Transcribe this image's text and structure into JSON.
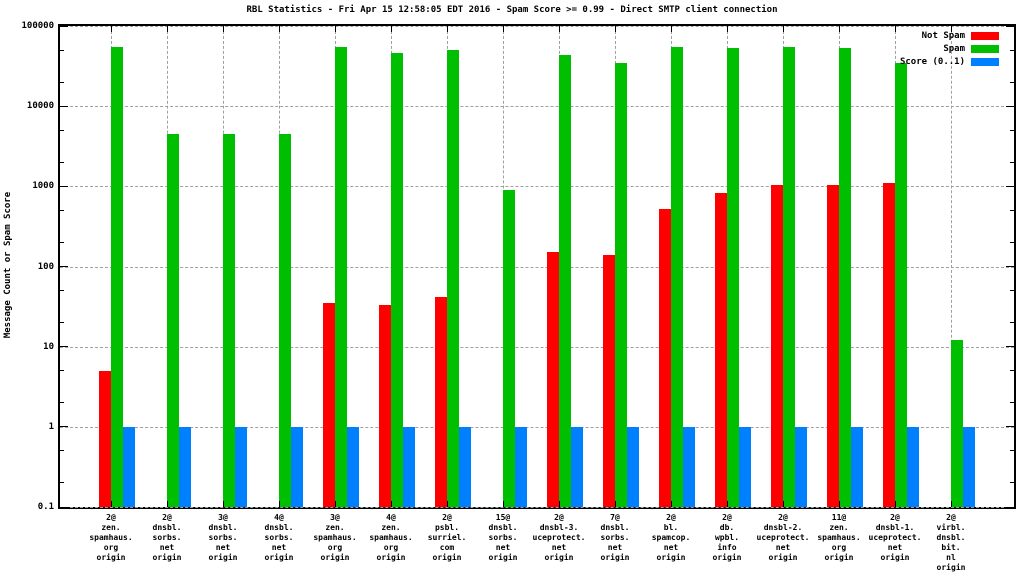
{
  "title": "RBL Statistics - Fri Apr 15 12:58:05 EDT 2016 - Spam Score >= 0.99 - Direct SMTP client connection",
  "colors": {
    "not_spam": "#ff0000",
    "spam": "#00bf00",
    "score": "#0080ff",
    "grid": "#a0a0a0",
    "border": "#000000",
    "background": "#ffffff"
  },
  "chart_data": {
    "type": "bar",
    "title": "RBL Statistics - Fri Apr 15 12:58:05 EDT 2016 - Spam Score >= 0.99 - Direct SMTP client connection",
    "ylabel": "Message Count or Spam Score",
    "xlabel": "",
    "yscale": "log",
    "ylim": [
      0.1,
      100000
    ],
    "grid": true,
    "legend_position": "top-right-inside",
    "yticks": [
      {
        "label": "100000",
        "value": 100000
      },
      {
        "label": "10000",
        "value": 10000
      },
      {
        "label": "1000",
        "value": 1000
      },
      {
        "label": "100",
        "value": 100
      },
      {
        "label": "10",
        "value": 10
      },
      {
        "label": "1",
        "value": 1
      },
      {
        "label": "0.1",
        "value": 0.1
      }
    ],
    "categories": [
      [
        "2@",
        "zen.",
        "spamhaus.",
        "org",
        "origin"
      ],
      [
        "2@",
        "dnsbl.",
        "sorbs.",
        "net",
        "origin"
      ],
      [
        "3@",
        "dnsbl.",
        "sorbs.",
        "net",
        "origin"
      ],
      [
        "4@",
        "dnsbl.",
        "sorbs.",
        "net",
        "origin"
      ],
      [
        "3@",
        "zen.",
        "spamhaus.",
        "org",
        "origin"
      ],
      [
        "4@",
        "zen.",
        "spamhaus.",
        "org",
        "origin"
      ],
      [
        "2@",
        "psbl.",
        "surriel.",
        "com",
        "origin"
      ],
      [
        "15@",
        "dnsbl.",
        "sorbs.",
        "net",
        "origin"
      ],
      [
        "2@",
        "dnsbl-3.",
        "uceprotect.",
        "net",
        "origin"
      ],
      [
        "7@",
        "dnsbl.",
        "sorbs.",
        "net",
        "origin"
      ],
      [
        "2@",
        "bl.",
        "spamcop.",
        "net",
        "origin"
      ],
      [
        "2@",
        "db.",
        "wpbl.",
        "info",
        "origin"
      ],
      [
        "2@",
        "dnsbl-2.",
        "uceprotect.",
        "net",
        "origin"
      ],
      [
        "11@",
        "zen.",
        "spamhaus.",
        "org",
        "origin"
      ],
      [
        "2@",
        "dnsbl-1.",
        "uceprotect.",
        "net",
        "origin"
      ],
      [
        "2@",
        "virbl.",
        "dnsbl.",
        "bit.",
        "nl",
        "origin"
      ]
    ],
    "series": [
      {
        "name": "Not Spam",
        "color": "#ff0000",
        "values": [
          5,
          0,
          0,
          0,
          35,
          33,
          42,
          0,
          150,
          140,
          520,
          815,
          1030,
          1030,
          1110,
          0
        ]
      },
      {
        "name": "Spam",
        "color": "#00bf00",
        "values": [
          54000,
          4500,
          4500,
          4500,
          55000,
          46000,
          50000,
          900,
          44000,
          34500,
          55000,
          53000,
          55000,
          53000,
          34500,
          12
        ]
      },
      {
        "name": "Score (0..1)",
        "color": "#0080ff",
        "values": [
          1,
          1,
          1,
          1,
          1,
          1,
          1,
          1,
          1,
          1,
          1,
          1,
          1,
          1,
          1,
          1
        ]
      }
    ]
  }
}
